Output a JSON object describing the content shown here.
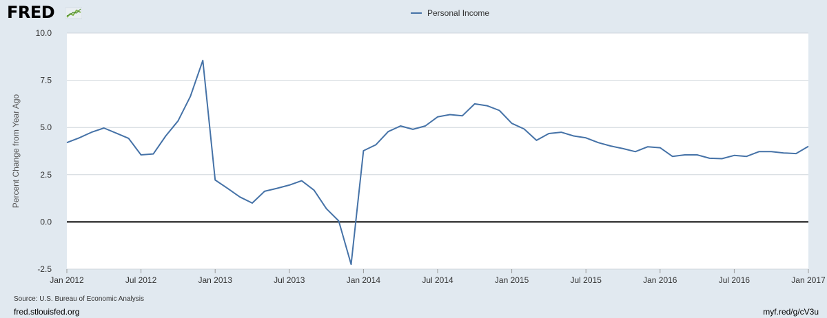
{
  "brand": {
    "name": "FRED"
  },
  "footer": {
    "source": "Source: U.S. Bureau of Economic Analysis",
    "site": "fred.stlouisfed.org",
    "short_link": "myf.red/g/cV3u"
  },
  "colors": {
    "series": "#4572a7",
    "plot_bg": "#ffffff",
    "page_bg": "#e1e9f0",
    "zero_line": "#000000"
  },
  "chart_data": {
    "type": "line",
    "title": "",
    "ylabel": "Percent Change from Year Ago",
    "xlabel": "",
    "xlim": [
      "2012-01-01",
      "2017-01-01"
    ],
    "ylim": [
      -2.5,
      10.0
    ],
    "grid": true,
    "legend_position": "top-center",
    "y_ticks": [
      "10.0",
      "7.5",
      "5.0",
      "2.5",
      "0.0",
      "-2.5"
    ],
    "x_ticks": [
      "Jan 2012",
      "Jul 2012",
      "Jan 2013",
      "Jul 2013",
      "Jan 2014",
      "Jul 2014",
      "Jan 2015",
      "Jul 2015",
      "Jan 2016",
      "Jul 2016",
      "Jan 2017"
    ],
    "series": [
      {
        "name": "Personal Income",
        "x": [
          "2012-01",
          "2012-02",
          "2012-03",
          "2012-04",
          "2012-05",
          "2012-06",
          "2012-07",
          "2012-08",
          "2012-09",
          "2012-10",
          "2012-11",
          "2012-12",
          "2013-01",
          "2013-02",
          "2013-03",
          "2013-04",
          "2013-05",
          "2013-06",
          "2013-07",
          "2013-08",
          "2013-09",
          "2013-10",
          "2013-11",
          "2013-12",
          "2014-01",
          "2014-02",
          "2014-03",
          "2014-04",
          "2014-05",
          "2014-06",
          "2014-07",
          "2014-08",
          "2014-09",
          "2014-10",
          "2014-11",
          "2014-12",
          "2015-01",
          "2015-02",
          "2015-03",
          "2015-04",
          "2015-05",
          "2015-06",
          "2015-07",
          "2015-08",
          "2015-09",
          "2015-10",
          "2015-11",
          "2015-12",
          "2016-01",
          "2016-02",
          "2016-03",
          "2016-04",
          "2016-05",
          "2016-06",
          "2016-07",
          "2016-08",
          "2016-09",
          "2016-10",
          "2016-11",
          "2016-12",
          "2017-01"
        ],
        "values": [
          4.2,
          4.45,
          4.75,
          4.97,
          4.7,
          4.42,
          3.55,
          3.6,
          4.55,
          5.35,
          6.65,
          8.55,
          2.22,
          1.78,
          1.32,
          1.0,
          1.62,
          1.78,
          1.95,
          2.18,
          1.68,
          0.7,
          0.05,
          -2.25,
          3.77,
          4.08,
          4.78,
          5.08,
          4.9,
          5.08,
          5.56,
          5.68,
          5.62,
          6.25,
          6.15,
          5.9,
          5.22,
          4.92,
          4.32,
          4.68,
          4.75,
          4.55,
          4.45,
          4.2,
          4.02,
          3.88,
          3.72,
          3.98,
          3.93,
          3.47,
          3.55,
          3.55,
          3.37,
          3.35,
          3.52,
          3.47,
          3.72,
          3.72,
          3.65,
          3.62,
          4.0
        ]
      }
    ]
  }
}
